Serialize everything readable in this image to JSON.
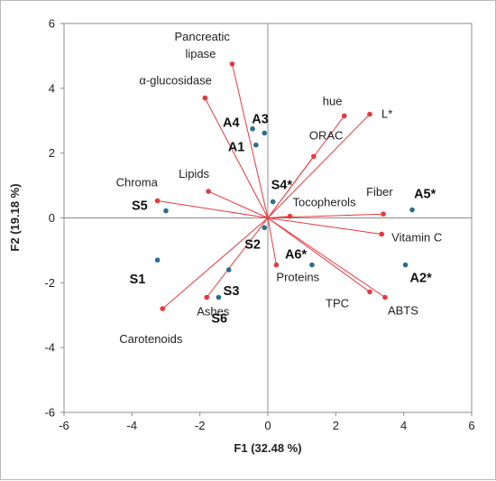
{
  "chart_data": {
    "type": "scatter",
    "title": "",
    "xlabel": "F1 (32.48 %)",
    "ylabel": "F2 (19.18 %)",
    "xlim": [
      -6,
      6
    ],
    "ylim": [
      -6,
      6
    ],
    "xticks": [
      "-6",
      "-4",
      "-2",
      "0",
      "2",
      "4",
      "6"
    ],
    "yticks": [
      "-6",
      "-4",
      "-2",
      "0",
      "2",
      "4",
      "6"
    ],
    "grid": false,
    "colors": {
      "variables": "#e8383d",
      "observations": "#2a6f8c",
      "axes": "#8c8c8c"
    },
    "variables": [
      {
        "label": "Pancreatic lipase",
        "x": -1.05,
        "y": 4.75
      },
      {
        "label": "α-glucosidase",
        "x": -1.85,
        "y": 3.7
      },
      {
        "label": "hue",
        "x": 2.25,
        "y": 3.15
      },
      {
        "label": "L*",
        "x": 3.0,
        "y": 3.2
      },
      {
        "label": "ORAC",
        "x": 1.35,
        "y": 1.9
      },
      {
        "label": "Lipids",
        "x": -1.75,
        "y": 0.82
      },
      {
        "label": "Chroma",
        "x": -3.25,
        "y": 0.53
      },
      {
        "label": "Tocopherols",
        "x": 0.65,
        "y": 0.05
      },
      {
        "label": "Fiber",
        "x": 3.4,
        "y": 0.12
      },
      {
        "label": "Vitamin C",
        "x": 3.35,
        "y": -0.5
      },
      {
        "label": "Proteins",
        "x": 0.25,
        "y": -1.45
      },
      {
        "label": "TPC",
        "x": 3.0,
        "y": -2.28
      },
      {
        "label": "ABTS",
        "x": 3.45,
        "y": -2.45
      },
      {
        "label": "Ashes",
        "x": -1.8,
        "y": -2.45
      },
      {
        "label": "Carotenoids",
        "x": -3.1,
        "y": -2.8
      }
    ],
    "observations": [
      {
        "label": "A1",
        "x": -0.35,
        "y": 2.25
      },
      {
        "label": "A3",
        "x": -0.1,
        "y": 2.62
      },
      {
        "label": "A4",
        "x": -0.45,
        "y": 2.75
      },
      {
        "label": "S4*",
        "x": 0.15,
        "y": 0.5
      },
      {
        "label": "S5",
        "x": -3.0,
        "y": 0.22
      },
      {
        "label": "A5*",
        "x": 4.25,
        "y": 0.25
      },
      {
        "label": "S2",
        "x": -0.1,
        "y": -0.3
      },
      {
        "label": "A6*",
        "x": 1.3,
        "y": -1.45
      },
      {
        "label": "A2*",
        "x": 4.05,
        "y": -1.45
      },
      {
        "label": "S1",
        "x": -3.25,
        "y": -1.3
      },
      {
        "label": "S3",
        "x": -1.15,
        "y": -1.6
      },
      {
        "label": "S6",
        "x": -1.45,
        "y": -2.45
      }
    ]
  }
}
